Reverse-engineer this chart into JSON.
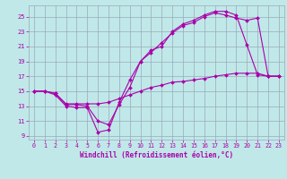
{
  "xlabel": "Windchill (Refroidissement éolien,°C)",
  "background_color": "#c0e8e8",
  "line_color": "#aa00aa",
  "grid_color": "#99aabb",
  "xlim": [
    -0.5,
    23.5
  ],
  "ylim": [
    8.5,
    26.5
  ],
  "xticks": [
    0,
    1,
    2,
    3,
    4,
    5,
    6,
    7,
    8,
    9,
    10,
    11,
    12,
    13,
    14,
    15,
    16,
    17,
    18,
    19,
    20,
    21,
    22,
    23
  ],
  "yticks": [
    9,
    11,
    13,
    15,
    17,
    19,
    21,
    23,
    25
  ],
  "line1_x": [
    0,
    1,
    2,
    3,
    4,
    5,
    6,
    7,
    8,
    9,
    10,
    11,
    12,
    13,
    14,
    15,
    16,
    17,
    18,
    19,
    20,
    21,
    22,
    23
  ],
  "line1_y": [
    15,
    15,
    14.5,
    13,
    12.8,
    12.8,
    9.5,
    9.8,
    13.5,
    16.5,
    19,
    20.5,
    21,
    23,
    24,
    24.5,
    25.2,
    25.7,
    25.7,
    25.2,
    21.2,
    17.2,
    17,
    17
  ],
  "line2_x": [
    0,
    1,
    2,
    3,
    4,
    5,
    6,
    7,
    8,
    9,
    10,
    11,
    12,
    13,
    14,
    15,
    16,
    17,
    18,
    19,
    20,
    21,
    22,
    23
  ],
  "line2_y": [
    15,
    15,
    14.7,
    13.2,
    13.2,
    13.0,
    11.0,
    10.5,
    13.2,
    15.5,
    19.0,
    20.2,
    21.5,
    22.8,
    23.8,
    24.2,
    25.0,
    25.5,
    25.2,
    24.8,
    24.5,
    24.8,
    17.0,
    17.0
  ],
  "line3_x": [
    0,
    1,
    2,
    3,
    4,
    5,
    6,
    7,
    8,
    9,
    10,
    11,
    12,
    13,
    14,
    15,
    16,
    17,
    18,
    19,
    20,
    21,
    22,
    23
  ],
  "line3_y": [
    15,
    15,
    14.7,
    13.3,
    13.3,
    13.3,
    13.3,
    13.5,
    14.0,
    14.5,
    15.0,
    15.5,
    15.8,
    16.2,
    16.3,
    16.5,
    16.7,
    17.0,
    17.2,
    17.4,
    17.4,
    17.4,
    17.0,
    17.0
  ]
}
